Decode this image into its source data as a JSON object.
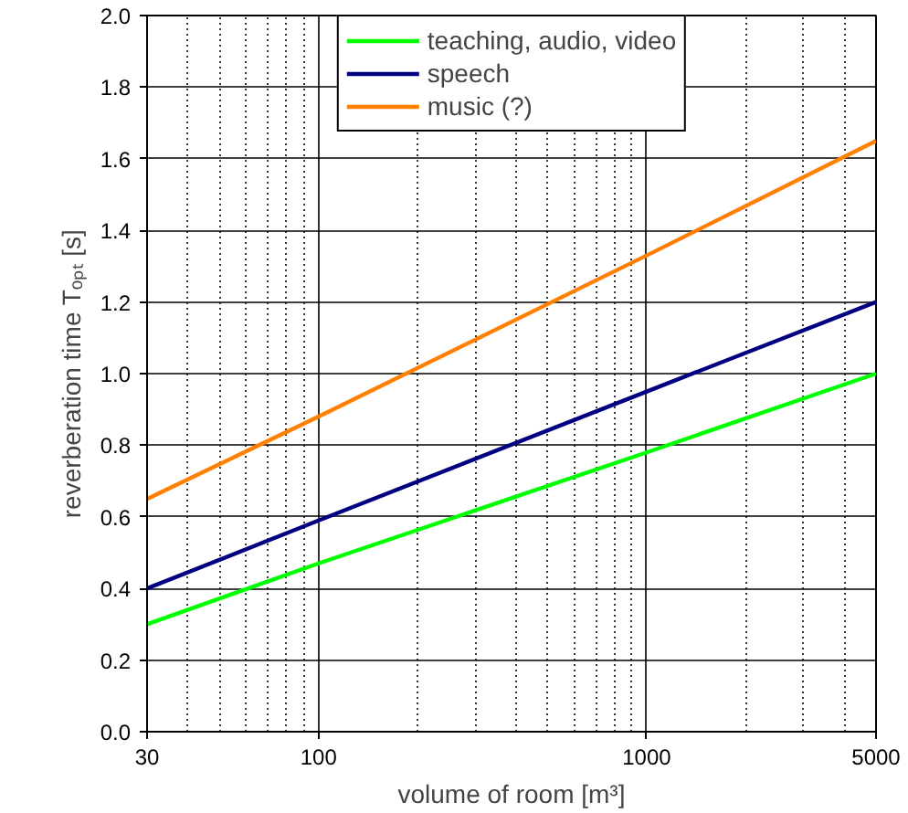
{
  "chart_data": {
    "type": "line",
    "xlabel": "volume of room [m³]",
    "ylabel": "reverberation time Tₒₚₜ [s]",
    "x": [
      30,
      100,
      1000,
      5000
    ],
    "series": [
      {
        "name": "teaching, audio, video",
        "color": "#00ff00",
        "values": [
          0.3,
          0.47,
          0.78,
          1.0
        ]
      },
      {
        "name": "speech",
        "color": "#000080",
        "values": [
          0.4,
          0.59,
          0.95,
          1.2
        ]
      },
      {
        "name": "music (?)",
        "color": "#ff8000",
        "values": [
          0.65,
          0.88,
          1.33,
          1.65
        ]
      }
    ],
    "log": "x",
    "xlim": [
      30,
      5000
    ],
    "ylim": [
      0,
      2
    ],
    "xticks": [
      30,
      100,
      1000,
      5000
    ],
    "yticks": [
      {
        "value": 0,
        "label": "0.0"
      },
      {
        "value": 0.2,
        "label": "0.2"
      },
      {
        "value": 0.4,
        "label": "0.4"
      },
      {
        "value": 0.6,
        "label": "0.6"
      },
      {
        "value": 0.8,
        "label": "0.8"
      },
      {
        "value": 1.0,
        "label": "1.0"
      },
      {
        "value": 1.2,
        "label": "1.2"
      },
      {
        "value": 1.4,
        "label": "1.4"
      },
      {
        "value": 1.6,
        "label": "1.6"
      },
      {
        "value": 1.8,
        "label": "1.8"
      },
      {
        "value": 2.0,
        "label": "2.0"
      }
    ],
    "grid": true,
    "legend": "top",
    "marker": "none",
    "line_style": "solid"
  }
}
